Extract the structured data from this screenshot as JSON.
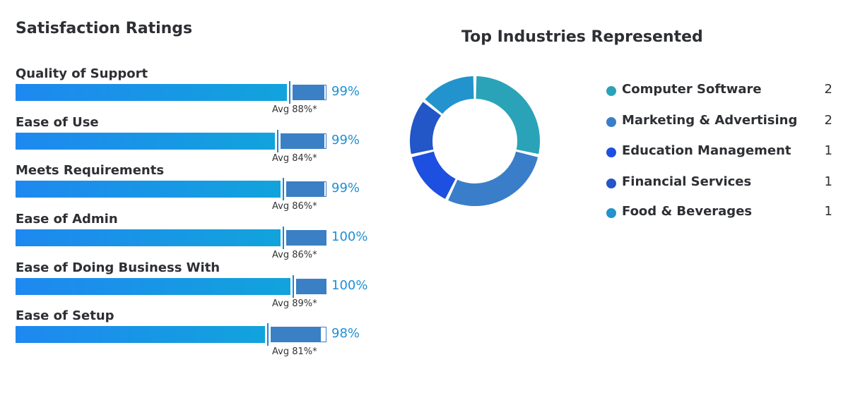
{
  "satisfaction": {
    "title": "Satisfaction Ratings",
    "ratings": [
      {
        "label": "Quality of Support",
        "value": 99,
        "value_text": "99%",
        "avg": 88,
        "avg_text": "Avg 88%*"
      },
      {
        "label": "Ease of Use",
        "value": 99,
        "value_text": "99%",
        "avg": 84,
        "avg_text": "Avg 84%*"
      },
      {
        "label": "Meets Requirements",
        "value": 99,
        "value_text": "99%",
        "avg": 86,
        "avg_text": "Avg 86%*"
      },
      {
        "label": "Ease of Admin",
        "value": 100,
        "value_text": "100%",
        "avg": 86,
        "avg_text": "Avg 86%*"
      },
      {
        "label": "Ease of Doing Business With",
        "value": 100,
        "value_text": "100%",
        "avg": 89,
        "avg_text": "Avg 89%*"
      },
      {
        "label": "Ease of Setup",
        "value": 98,
        "value_text": "98%",
        "avg": 81,
        "avg_text": "Avg 81%*"
      }
    ]
  },
  "industries": {
    "title": "Top Industries Represented",
    "items": [
      {
        "label": "Computer Software",
        "count": 2,
        "color": "#2aa3b8"
      },
      {
        "label": "Marketing & Advertising",
        "count": 2,
        "color": "#3a7ec9"
      },
      {
        "label": "Education Management",
        "count": 1,
        "color": "#1d4fe0"
      },
      {
        "label": "Financial Services",
        "count": 1,
        "color": "#2356c6"
      },
      {
        "label": "Food & Beverages",
        "count": 1,
        "color": "#2293cc"
      }
    ]
  },
  "chart_data": [
    {
      "type": "bar",
      "title": "Satisfaction Ratings",
      "categories": [
        "Quality of Support",
        "Ease of Use",
        "Meets Requirements",
        "Ease of Admin",
        "Ease of Doing Business With",
        "Ease of Setup"
      ],
      "series": [
        {
          "values": [
            99,
            99,
            99,
            100,
            100,
            98
          ]
        },
        {
          "name": "Avg",
          "values": [
            88,
            84,
            86,
            86,
            89,
            81
          ]
        }
      ],
      "ylim": [
        0,
        100
      ]
    },
    {
      "type": "pie",
      "title": "Top Industries Represented",
      "categories": [
        "Computer Software",
        "Marketing & Advertising",
        "Education Management",
        "Financial Services",
        "Food & Beverages"
      ],
      "values": [
        2,
        2,
        1,
        1,
        1
      ]
    }
  ]
}
